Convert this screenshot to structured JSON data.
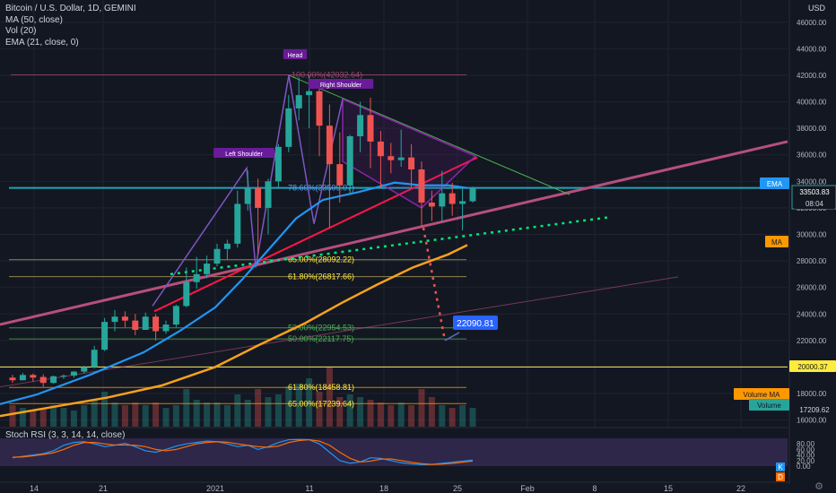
{
  "legend": {
    "title": "Bitcoin / U.S. Dollar, 1D, GEMINI",
    "ma": "MA (50, close)",
    "vol": "Vol (20)",
    "ema": "EMA (21, close, 0)"
  },
  "currency": "USD",
  "stoch_title": "Stoch RSI (3, 3, 14, 14, close)",
  "colors": {
    "background": "#131722",
    "up": "#26a69a",
    "down": "#ef5350",
    "ema": "#2196f3",
    "ma": "#f7a21b",
    "trend_main": "#b64f7d",
    "support_red": "#ff1744",
    "pattern": "#7b1fa2",
    "cyan_level": "#26c6da",
    "yellow_level": "#ffee58",
    "green_dotted": "#00e676",
    "target_box": "#2962ff"
  },
  "chart_data": {
    "type": "candlestick",
    "symbol": "Bitcoin / U.S. Dollar",
    "interval": "1D",
    "exchange": "GEMINI",
    "x_tick_labels": [
      "14",
      "21",
      "2021",
      "11",
      "18",
      "25",
      "Feb",
      "8",
      "15",
      "22"
    ],
    "y_ticks": [
      16000,
      18000,
      20000,
      22000,
      24000,
      26000,
      28000,
      30000,
      32000,
      34000,
      36000,
      38000,
      40000,
      42000,
      44000,
      46000
    ],
    "ylim": [
      15500,
      47000
    ],
    "ohlc": [
      [
        19200,
        19400,
        18800,
        19000
      ],
      [
        19000,
        19550,
        19000,
        19400
      ],
      [
        19400,
        19500,
        18900,
        19200
      ],
      [
        19250,
        19450,
        18500,
        18800
      ],
      [
        18800,
        19350,
        18750,
        19300
      ],
      [
        19300,
        19450,
        19100,
        19350
      ],
      [
        19350,
        19700,
        19200,
        19650
      ],
      [
        19650,
        20100,
        19500,
        20000
      ],
      [
        20000,
        21600,
        19900,
        21300
      ],
      [
        21300,
        23700,
        21200,
        23400
      ],
      [
        23400,
        24300,
        22700,
        23800
      ],
      [
        23800,
        24200,
        23000,
        23500
      ],
      [
        23500,
        24000,
        22400,
        22800
      ],
      [
        22800,
        24100,
        22800,
        23800
      ],
      [
        23800,
        24000,
        22000,
        22700
      ],
      [
        22700,
        23500,
        22500,
        23200
      ],
      [
        23200,
        24700,
        23000,
        24600
      ],
      [
        24600,
        27500,
        24500,
        26400
      ],
      [
        26400,
        28300,
        25900,
        27000
      ],
      [
        27000,
        28400,
        26700,
        27800
      ],
      [
        27800,
        29300,
        27600,
        28900
      ],
      [
        28900,
        29600,
        28100,
        29300
      ],
      [
        29300,
        33300,
        29000,
        32300
      ],
      [
        32300,
        34800,
        31800,
        33500
      ],
      [
        33500,
        34200,
        28500,
        32000
      ],
      [
        32000,
        34200,
        30000,
        34000
      ],
      [
        34000,
        36800,
        33500,
        36600
      ],
      [
        36600,
        40500,
        36200,
        39500
      ],
      [
        39500,
        41800,
        38600,
        40500
      ],
      [
        40500,
        42000,
        38000,
        40800
      ],
      [
        40800,
        41300,
        35900,
        38200
      ],
      [
        38200,
        39800,
        30500,
        35300
      ],
      [
        35300,
        37700,
        32400,
        33700
      ],
      [
        33700,
        37500,
        33000,
        37400
      ],
      [
        37400,
        40000,
        36200,
        39000
      ],
      [
        39000,
        40300,
        35000,
        37000
      ],
      [
        37000,
        37800,
        33500,
        35900
      ],
      [
        35900,
        36900,
        34600,
        35600
      ],
      [
        35600,
        37900,
        35100,
        35800
      ],
      [
        35800,
        36800,
        33500,
        34900
      ],
      [
        34900,
        35500,
        30500,
        32400
      ],
      [
        32400,
        33300,
        31000,
        32100
      ],
      [
        32100,
        34800,
        30900,
        33100
      ],
      [
        33100,
        33900,
        31400,
        32300
      ],
      [
        32300,
        33500,
        30300,
        32500
      ],
      [
        32500,
        33600,
        32400,
        33500
      ]
    ],
    "indicators": {
      "ema": {
        "name": "EMA (21, close, 0)",
        "last": 33503.83
      },
      "ma": {
        "name": "MA (50, close)",
        "last": 29100
      }
    },
    "volume_ma": {
      "name": "Volume MA",
      "last": 17209.62
    },
    "fibonacci_levels": [
      {
        "label": "100.00%(42032.64)",
        "value": 42032.64
      },
      {
        "label": "78.60%(33509.07)",
        "value": 33509.07
      },
      {
        "label": "65.00%(28092.22)",
        "value": 28092.22
      },
      {
        "label": "61.80%(26817.66)",
        "value": 26817.66
      },
      {
        "label": "50.00%(22954.53)",
        "value": 22954.53
      },
      {
        "label": "50.00%(22117.75)",
        "value": 22117.75
      },
      {
        "label": "61.80%(18458.81)",
        "value": 18458.81
      },
      {
        "label": "65.00%(17239.64)",
        "value": 17239.64
      }
    ],
    "horizontal_levels": [
      {
        "label": "20000.37",
        "value": 20000.37
      },
      {
        "label": "33503.83",
        "value": 33503.83
      }
    ],
    "annotations": [
      "Left Shoulder",
      "Head",
      "Right Shoulder"
    ],
    "target_label": "22090.81",
    "right_axis_labels": {
      "ema": "EMA",
      "price": "33503.83",
      "countdown": "08:04",
      "ma": "MA",
      "level": "20000.37",
      "volume_ma": "Volume MA",
      "volume": "Volume",
      "volume_value": "17209.62"
    },
    "stoch_rsi": {
      "name": "Stoch RSI (3, 3, 14, 14, close)",
      "y_ticks": [
        0,
        20,
        40,
        60,
        80
      ],
      "k": [
        30,
        35,
        40,
        45,
        55,
        75,
        85,
        88,
        80,
        70,
        75,
        82,
        70,
        55,
        50,
        60,
        72,
        80,
        85,
        90,
        88,
        80,
        70,
        75,
        60,
        70,
        85,
        95,
        96,
        95,
        80,
        50,
        20,
        10,
        15,
        30,
        28,
        20,
        12,
        8,
        5,
        6,
        10,
        14,
        18,
        22
      ],
      "d": [
        32,
        33,
        37,
        42,
        48,
        60,
        75,
        85,
        85,
        80,
        76,
        76,
        75,
        70,
        60,
        55,
        60,
        70,
        80,
        85,
        88,
        86,
        80,
        75,
        70,
        68,
        72,
        85,
        92,
        95,
        90,
        75,
        50,
        28,
        15,
        18,
        25,
        26,
        20,
        14,
        9,
        6,
        7,
        10,
        14,
        18
      ],
      "legend": [
        "K",
        "D"
      ]
    },
    "volume": [
      8,
      7,
      6,
      7,
      8,
      7,
      6,
      8,
      10,
      13,
      9,
      8,
      9,
      8,
      9,
      7,
      8,
      14,
      10,
      9,
      9,
      8,
      12,
      10,
      14,
      11,
      12,
      15,
      16,
      18,
      13,
      22,
      11,
      12,
      11,
      10,
      9,
      8,
      9,
      8,
      14,
      11,
      8,
      7,
      8,
      7
    ]
  }
}
